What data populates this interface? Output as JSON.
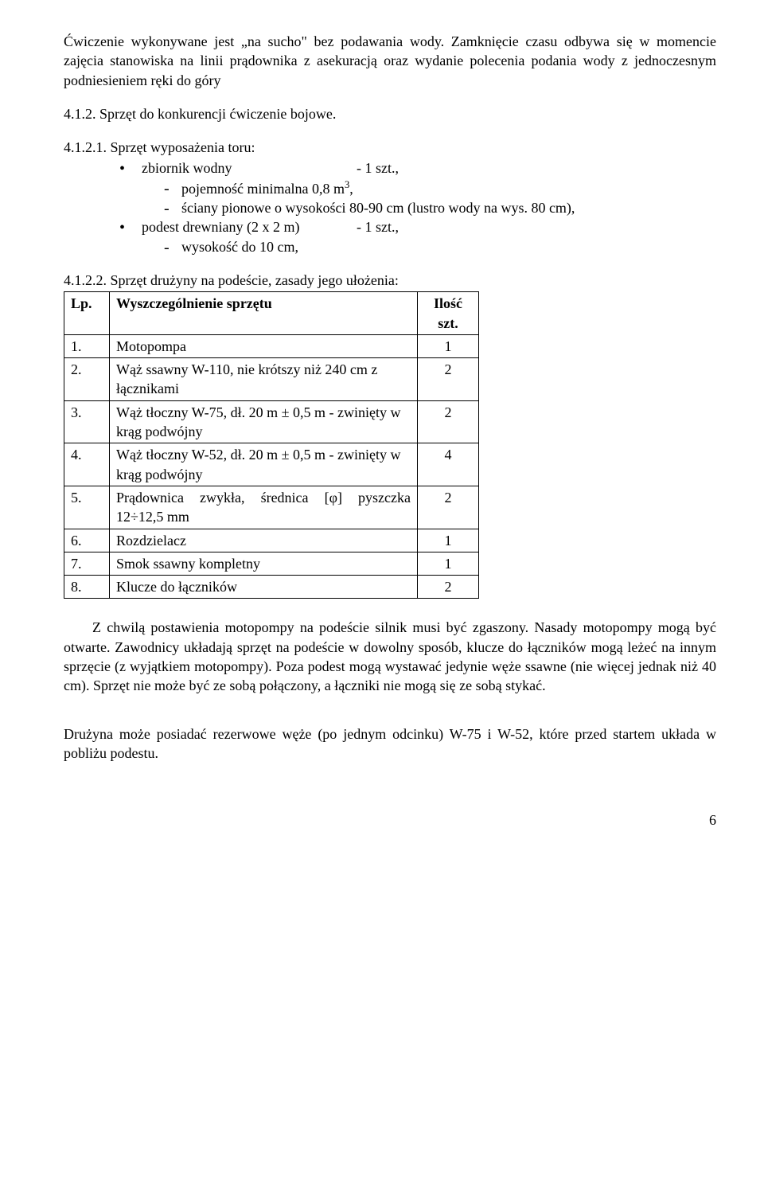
{
  "intro": "Ćwiczenie wykonywane jest „na sucho\" bez podawania wody. Zamknięcie czasu odbywa się w momencie zajęcia stanowiska na linii prądownika z asekuracją  oraz wydanie polecenia podania wody z jednoczesnym podniesieniem  ręki do góry",
  "sec412": "4.1.2. Sprzęt do konkurencji ćwiczenie bojowe.",
  "sec4121": "4.1.2.1. Sprzęt wyposażenia toru:",
  "tor": {
    "b1_label": "zbiornik wodny",
    "b1_val": "- 1 szt.,",
    "s1": "pojemność minimalna 0,8 m",
    "s1_sup": "3",
    "s1_after": ",",
    "s2": "ściany pionowe o wysokości 80-90 cm (lustro wody na wys. 80 cm),",
    "b2_label": "podest drewniany (2 x 2 m)",
    "b2_val": "- 1 szt.,",
    "s3": "wysokość do 10 cm,"
  },
  "sec4122": "4.1.2.2. Sprzęt drużyny na podeście, zasady jego ułożenia:",
  "table": {
    "h_lp": "Lp.",
    "h_item": "Wyszczególnienie sprzętu",
    "h_qty_l1": "Ilość",
    "h_qty_l2": "szt.",
    "rows": [
      {
        "lp": "1.",
        "item": "Motopompa",
        "qty": "1"
      },
      {
        "lp": "2.",
        "item": "Wąż ssawny W-110, nie krótszy niż 240 cm z łącznikami",
        "qty": "2"
      },
      {
        "lp": "3.",
        "item": "Wąż tłoczny W-75, dł. 20 m ± 0,5 m - zwinięty w krąg podwójny",
        "qty": "2"
      },
      {
        "lp": "4.",
        "item": "Wąż tłoczny W-52, dł. 20 m ± 0,5 m - zwinięty w krąg podwójny",
        "qty": "4"
      },
      {
        "lp": "5.",
        "item": "Prądownica zwykła, średnica [φ] pyszczka 12÷12,5 mm",
        "qty": "2"
      },
      {
        "lp": "6.",
        "item": "Rozdzielacz",
        "qty": "1"
      },
      {
        "lp": "7.",
        "item": "Smok ssawny kompletny",
        "qty": "1"
      },
      {
        "lp": "8.",
        "item": "Klucze do łączników",
        "qty": "2"
      }
    ]
  },
  "para_after": "Z chwilą postawienia motopompy na podeście silnik musi być zgaszony. Nasady motopompy mogą być otwarte. Zawodnicy układają sprzęt na podeście w dowolny sposób, klucze do łączników mogą leżeć na innym sprzęcie (z wyjątkiem motopompy). Poza podest mogą wystawać jedynie węże ssawne (nie więcej jednak niż 40 cm). Sprzęt nie może być ze sobą połączony, a łączniki nie mogą się ze sobą stykać.",
  "para_last": "Drużyna może posiadać rezerwowe węże (po jednym odcinku) W-75 i W-52, które przed startem układa w pobliżu podestu.",
  "page_number": "6"
}
